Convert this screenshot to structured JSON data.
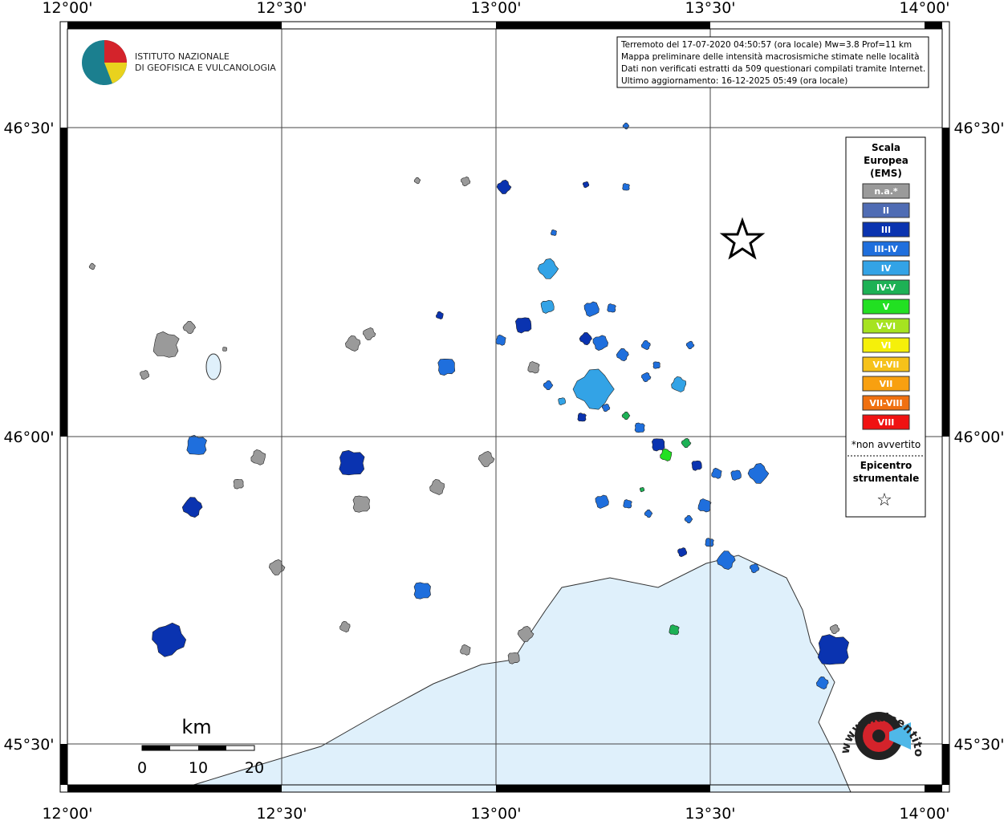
{
  "map": {
    "lon_labels": [
      "12°00'",
      "12°30'",
      "13°00'",
      "13°30'",
      "14°00'"
    ],
    "lat_labels": [
      "46°30'",
      "46°00'",
      "45°30'"
    ],
    "logo": {
      "lines": [
        "ISTITUTO NAZIONALE",
        "DI GEOFISICA E VULCANOLOGIA"
      ]
    },
    "info": [
      "Terremoto del 17-07-2020 04:50:57 (ora locale) Mw=3.8 Prof=11 km",
      "Mappa preliminare delle intensità macrosismiche stimate nelle località",
      "Dati non verificati estratti da 509 questionari compilati tramite Internet.",
      "Ultimo aggiornamento: 16-12-2025 05:49 (ora locale)"
    ],
    "legend": {
      "title": [
        "Scala",
        "Europea",
        "(EMS)"
      ],
      "items": [
        {
          "label": "n.a.*",
          "color": "#9a9a9a"
        },
        {
          "label": "II",
          "color": "#4f6cb4"
        },
        {
          "label": "III",
          "color": "#0a33b0"
        },
        {
          "label": "III-IV",
          "color": "#1f6fdd"
        },
        {
          "label": "IV",
          "color": "#33a3e6"
        },
        {
          "label": "IV-V",
          "color": "#1db155"
        },
        {
          "label": "V",
          "color": "#22e022"
        },
        {
          "label": "V-VI",
          "color": "#a6e320"
        },
        {
          "label": "VI",
          "color": "#f5f00a"
        },
        {
          "label": "VI-VII",
          "color": "#f6c21a"
        },
        {
          "label": "VII",
          "color": "#f8a010"
        },
        {
          "label": "VII-VIII",
          "color": "#f07010"
        },
        {
          "label": "VIII",
          "color": "#f01212"
        }
      ],
      "note": "*non avvertito",
      "epicenter": [
        "Epicentro",
        "strumentale"
      ],
      "star": "☆"
    },
    "scale": {
      "unit": "km",
      "labels": [
        "0",
        "10",
        "20"
      ]
    },
    "hsit": "www.haisentitoilterremoto.it"
  }
}
